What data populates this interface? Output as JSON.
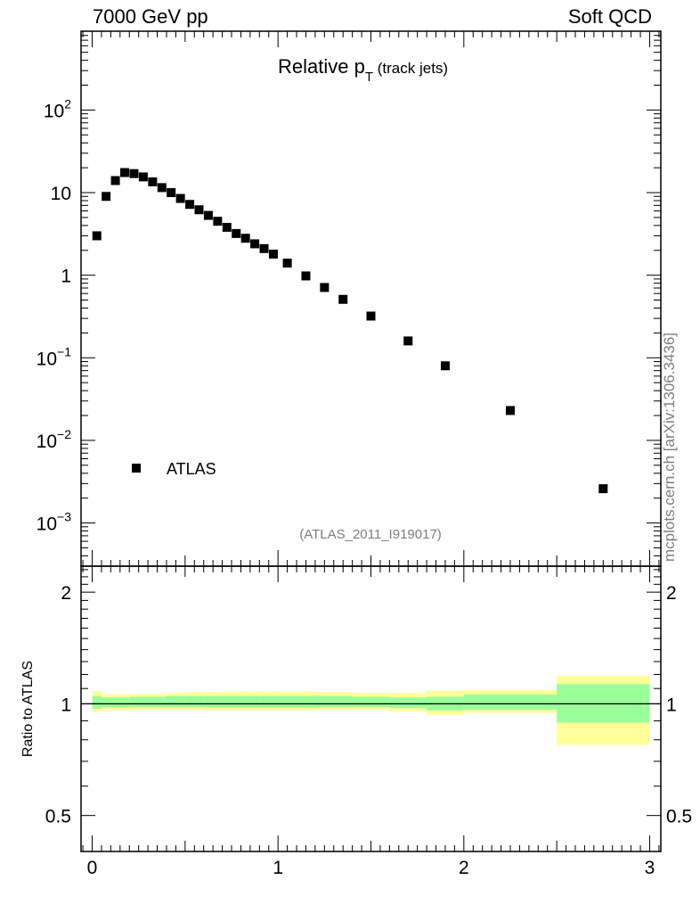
{
  "header": {
    "left": "7000 GeV pp",
    "right": "Soft QCD"
  },
  "side_label": "mcplots.cern.ch [arXiv:1306.3436]",
  "colors": {
    "data_marker": "#000000",
    "band_inner": "#99ff99",
    "band_outer": "#ffff99",
    "watermark": "#7f7f7f"
  },
  "chart_data": [
    {
      "type": "scatter",
      "name": "main",
      "title_main": "Relative p",
      "title_sub": "T",
      "title_extra": "(track jets)",
      "yscale": "log",
      "xlim": [
        -0.06,
        3.06
      ],
      "ylim": [
        0.0003,
        900
      ],
      "y_ticks": [
        {
          "value": 100,
          "base": "10",
          "exp": "2"
        },
        {
          "value": 10,
          "base": "10",
          "exp": ""
        },
        {
          "value": 1,
          "base": "1",
          "exp": ""
        },
        {
          "value": 0.1,
          "base": "10",
          "exp": "−1"
        },
        {
          "value": 0.01,
          "base": "10",
          "exp": "−2"
        },
        {
          "value": 0.001,
          "base": "10",
          "exp": "−3"
        }
      ],
      "legend": {
        "label": "ATLAS",
        "position": "bottom-left"
      },
      "analysis_label": "(ATLAS_2011_I919017)",
      "series": [
        {
          "name": "ATLAS",
          "x": [
            0.025,
            0.075,
            0.125,
            0.175,
            0.225,
            0.275,
            0.325,
            0.375,
            0.425,
            0.475,
            0.525,
            0.575,
            0.625,
            0.675,
            0.725,
            0.775,
            0.825,
            0.875,
            0.925,
            0.975,
            1.05,
            1.15,
            1.25,
            1.35,
            1.5,
            1.7,
            1.9,
            2.25,
            2.75
          ],
          "y": [
            3.0,
            9.0,
            14.0,
            17.5,
            17.0,
            15.5,
            13.5,
            11.5,
            10.0,
            8.5,
            7.2,
            6.2,
            5.3,
            4.5,
            3.8,
            3.2,
            2.8,
            2.4,
            2.1,
            1.8,
            1.4,
            0.98,
            0.71,
            0.51,
            0.32,
            0.16,
            0.08,
            0.023,
            0.0026
          ]
        }
      ]
    },
    {
      "type": "area",
      "name": "ratio",
      "ylabel": "Ratio to ATLAS",
      "ylim": [
        0.4,
        2.35
      ],
      "xlim": [
        -0.06,
        3.06
      ],
      "x_ticks": [
        "0",
        "1",
        "2",
        "3"
      ],
      "y_ticks": [
        "0.5",
        "1",
        "2"
      ],
      "reference_line": 1,
      "bands": {
        "edges": [
          0,
          0.05,
          0.1,
          0.2,
          0.3,
          0.4,
          0.5,
          0.6,
          0.7,
          0.8,
          0.9,
          1.0,
          1.2,
          1.4,
          1.6,
          1.8,
          2.0,
          2.5,
          3.0
        ],
        "inner_low": [
          0.97,
          0.98,
          0.98,
          0.98,
          0.98,
          0.98,
          0.98,
          0.98,
          0.98,
          0.98,
          0.98,
          0.98,
          0.98,
          0.98,
          0.975,
          0.96,
          0.965,
          0.89
        ],
        "inner_high": [
          1.05,
          1.04,
          1.04,
          1.045,
          1.045,
          1.05,
          1.05,
          1.05,
          1.05,
          1.05,
          1.05,
          1.05,
          1.05,
          1.045,
          1.04,
          1.045,
          1.06,
          1.13
        ],
        "outer_low": [
          0.95,
          0.96,
          0.96,
          0.965,
          0.965,
          0.965,
          0.965,
          0.96,
          0.96,
          0.96,
          0.96,
          0.96,
          0.965,
          0.965,
          0.955,
          0.935,
          0.945,
          0.775
        ],
        "outer_high": [
          1.08,
          1.06,
          1.06,
          1.065,
          1.065,
          1.07,
          1.075,
          1.075,
          1.08,
          1.08,
          1.08,
          1.08,
          1.075,
          1.07,
          1.07,
          1.085,
          1.09,
          1.19
        ]
      }
    }
  ]
}
